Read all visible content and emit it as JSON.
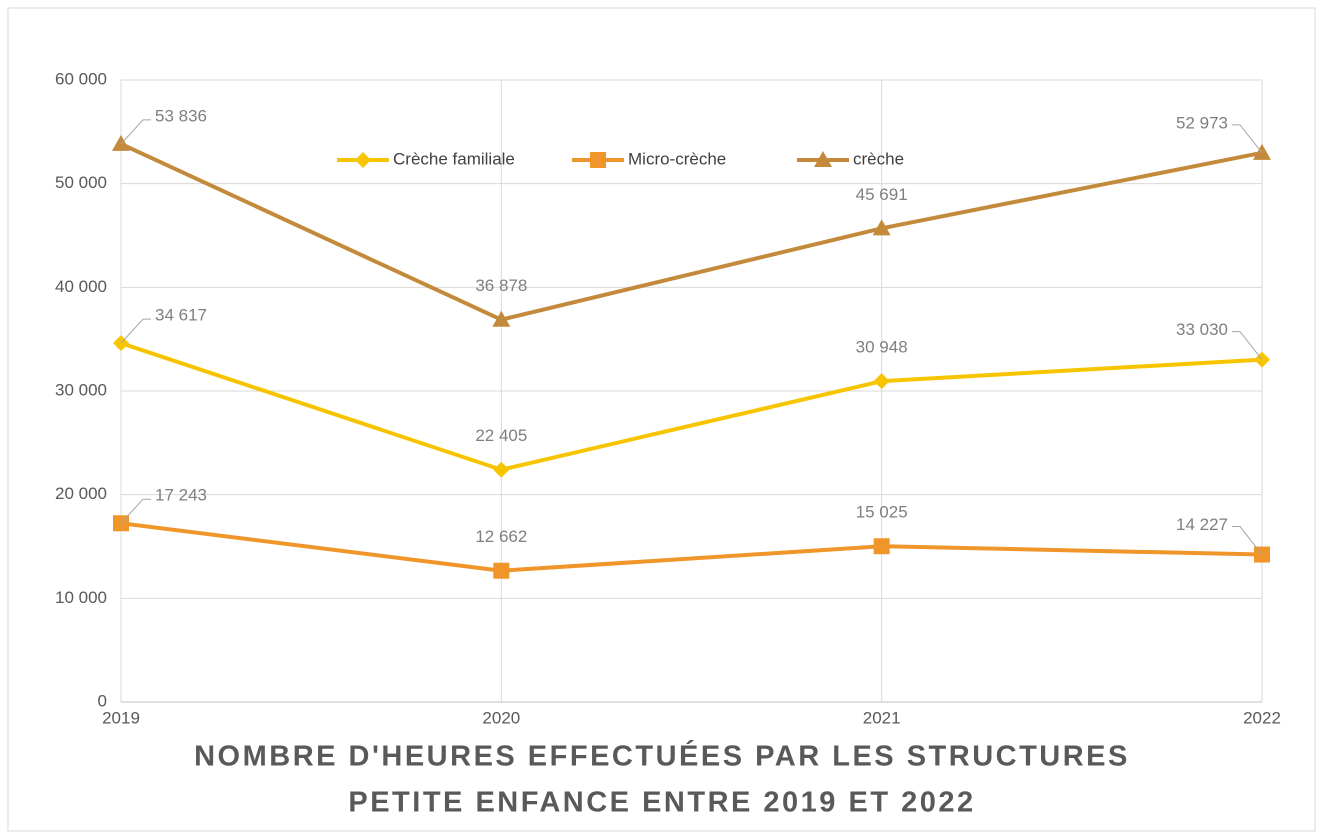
{
  "chart_data": {
    "type": "line",
    "title": [
      "NOMBRE D'HEURES EFFECTUÉES PAR LES STRUCTURES",
      "PETITE ENFANCE ENTRE 2019 ET 2022"
    ],
    "categories": [
      "2019",
      "2020",
      "2021",
      "2022"
    ],
    "series": [
      {
        "name": "Crèche familiale",
        "color": "#f7c500",
        "marker": "diamond",
        "values": [
          34617,
          22405,
          30948,
          33030
        ],
        "value_labels": [
          "34 617",
          "22 405",
          "30 948",
          "33 030"
        ]
      },
      {
        "name": "Micro-crèche",
        "color": "#f0952a",
        "marker": "square",
        "values": [
          17243,
          12662,
          15025,
          14227
        ],
        "value_labels": [
          "17 243",
          "12 662",
          "15 025",
          "14 227"
        ]
      },
      {
        "name": "crèche",
        "color": "#c48a3c",
        "marker": "triangle",
        "values": [
          53836,
          36878,
          45691,
          52973
        ],
        "value_labels": [
          "53 836",
          "36 878",
          "45 691",
          "52 973"
        ]
      }
    ],
    "ylim": [
      0,
      60000
    ],
    "yticks": [
      {
        "value": 0,
        "label": "0"
      },
      {
        "value": 10000,
        "label": "10 000"
      },
      {
        "value": 20000,
        "label": "20 000"
      },
      {
        "value": 30000,
        "label": "30 000"
      },
      {
        "value": 40000,
        "label": "40 000"
      },
      {
        "value": 50000,
        "label": "50 000"
      },
      {
        "value": 60000,
        "label": "60 000"
      }
    ],
    "grid": true,
    "legend": "top"
  }
}
